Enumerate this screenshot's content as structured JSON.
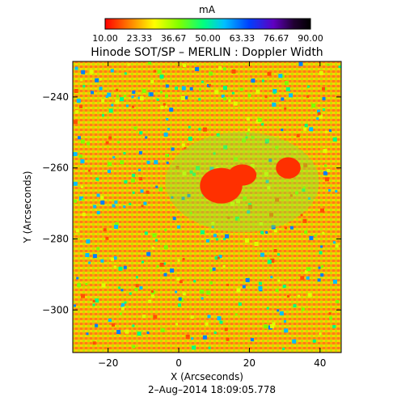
{
  "colorbar": {
    "unit": "mA",
    "tick_labels": [
      "10.00",
      "23.33",
      "36.67",
      "50.00",
      "63.33",
      "76.67",
      "90.00"
    ],
    "range": [
      10.0,
      90.0
    ],
    "colormap": [
      "#ff0000",
      "#ff8000",
      "#ffff00",
      "#80ff00",
      "#00ff80",
      "#00c0ff",
      "#0040ff",
      "#6000c0",
      "#200030",
      "#000000"
    ]
  },
  "title": "Hinode SOT/SP – MERLIN : Doppler Width",
  "axes": {
    "xlabel": "X (Arcseconds)",
    "ylabel": "Y (Arcseconds)",
    "x_ticks": [
      "−20",
      "0",
      "20",
      "40"
    ],
    "y_ticks": [
      "−240",
      "−260",
      "−280",
      "−300"
    ],
    "xlim": [
      -30,
      46
    ],
    "ylim": [
      -312,
      -230
    ]
  },
  "timestamp": "2–Aug–2014 18:09:05.778",
  "map": {
    "quiet_sun_color": "#ffa000",
    "umbra_color": "#ff3000",
    "umbra_regions": [
      {
        "x": 12,
        "y": -265,
        "rx": 6,
        "ry": 5
      },
      {
        "x": 18,
        "y": -262,
        "rx": 4,
        "ry": 3
      },
      {
        "x": 31,
        "y": -260,
        "rx": 3.5,
        "ry": 3
      }
    ]
  }
}
